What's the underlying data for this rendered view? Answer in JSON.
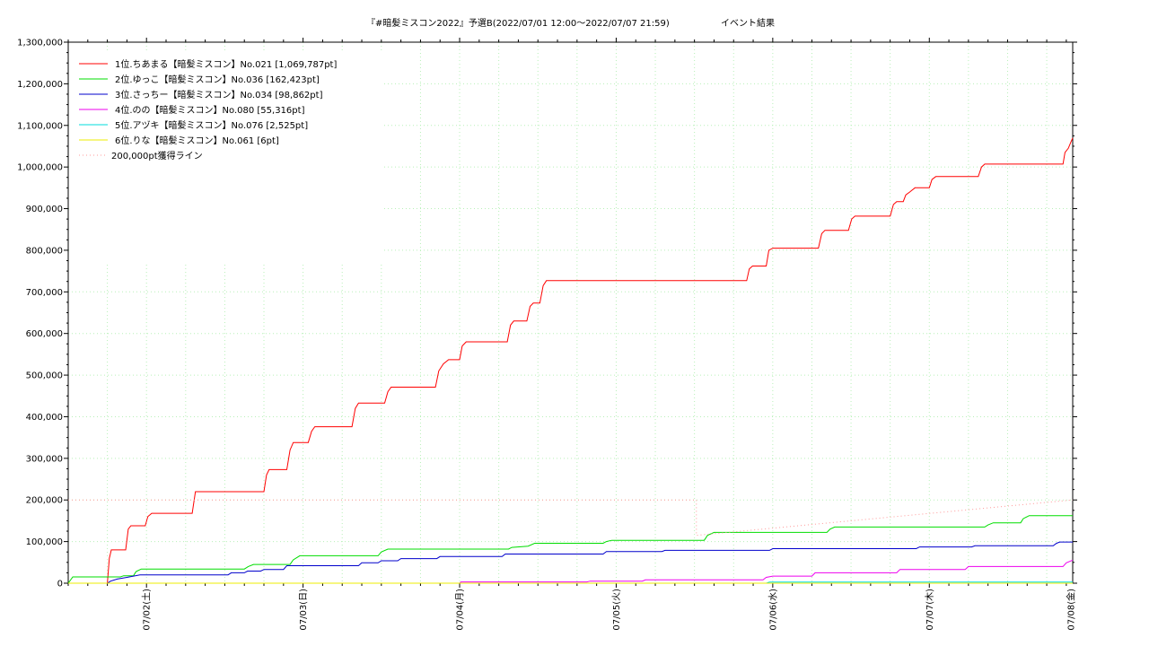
{
  "chart_data": {
    "type": "line",
    "title": "『#暗髪ミスコン2022』予選B(2022/07/01 12:00～2022/07/07 21:59)",
    "subtitle": "イベント結果",
    "ylim": [
      0,
      1300000
    ],
    "yticks": [
      "0",
      "100,000",
      "200,000",
      "300,000",
      "400,000",
      "500,000",
      "600,000",
      "700,000",
      "800,000",
      "900,000",
      "1,000,000",
      "1,100,000",
      "1,200,000",
      "1,300,000"
    ],
    "xlim": [
      0,
      153.98
    ],
    "xticks": [
      {
        "x": 12,
        "label": "07/02(土)"
      },
      {
        "x": 36,
        "label": "07/03(日)"
      },
      {
        "x": 60,
        "label": "07/04(月)"
      },
      {
        "x": 84,
        "label": "07/05(火)"
      },
      {
        "x": 108,
        "label": "07/06(水)"
      },
      {
        "x": 132,
        "label": "07/07(木)"
      },
      {
        "x": 156,
        "label": "07/08(金)"
      }
    ],
    "grid": true,
    "legend_position": "top-left",
    "series": [
      {
        "name": "1位.ちあまる【暗髪ミスコン】No.021 [1,069,787pt]",
        "color": "#ff0000",
        "points": [
          [
            0,
            0
          ],
          [
            6,
            0
          ],
          [
            6.3,
            60000
          ],
          [
            6.6,
            80000
          ],
          [
            8.8,
            80000
          ],
          [
            9.2,
            130000
          ],
          [
            9.6,
            138000
          ],
          [
            11.8,
            138000
          ],
          [
            12.2,
            160000
          ],
          [
            12.8,
            168000
          ],
          [
            19,
            168000
          ],
          [
            19.5,
            220000
          ],
          [
            30,
            220000
          ],
          [
            30.4,
            260000
          ],
          [
            30.8,
            273000
          ],
          [
            33.5,
            273000
          ],
          [
            34,
            320000
          ],
          [
            34.5,
            338000
          ],
          [
            36.8,
            338000
          ],
          [
            37.3,
            365000
          ],
          [
            37.8,
            376000
          ],
          [
            43.5,
            376000
          ],
          [
            44,
            420000
          ],
          [
            44.5,
            433000
          ],
          [
            48.5,
            433000
          ],
          [
            49,
            460000
          ],
          [
            49.5,
            471000
          ],
          [
            56.3,
            471000
          ],
          [
            56.8,
            510000
          ],
          [
            57.5,
            527000
          ],
          [
            58.3,
            537000
          ],
          [
            60,
            537000
          ],
          [
            60.4,
            570000
          ],
          [
            61,
            580000
          ],
          [
            67.3,
            580000
          ],
          [
            67.8,
            620000
          ],
          [
            68.3,
            630000
          ],
          [
            70.3,
            630000
          ],
          [
            70.8,
            665000
          ],
          [
            71.3,
            673000
          ],
          [
            72.3,
            673000
          ],
          [
            72.8,
            715000
          ],
          [
            73.3,
            727000
          ],
          [
            104,
            727000
          ],
          [
            104.4,
            755000
          ],
          [
            104.9,
            762000
          ],
          [
            107,
            762000
          ],
          [
            107.4,
            800000
          ],
          [
            108,
            805000
          ],
          [
            115,
            805000
          ],
          [
            115.5,
            840000
          ],
          [
            116,
            848000
          ],
          [
            119.6,
            848000
          ],
          [
            120.1,
            875000
          ],
          [
            120.6,
            882000
          ],
          [
            126,
            882000
          ],
          [
            126.5,
            910000
          ],
          [
            127,
            917000
          ],
          [
            128,
            917000
          ],
          [
            128.4,
            933000
          ],
          [
            129,
            940000
          ],
          [
            129.8,
            950000
          ],
          [
            132,
            950000
          ],
          [
            132.4,
            970000
          ],
          [
            133,
            977000
          ],
          [
            139.5,
            977000
          ],
          [
            140,
            1000000
          ],
          [
            140.5,
            1007000
          ],
          [
            152.5,
            1007000
          ],
          [
            152.8,
            1035000
          ],
          [
            153.3,
            1045000
          ],
          [
            153.7,
            1060000
          ],
          [
            154.2,
            1069787
          ],
          [
            156.4,
            1069787
          ]
        ]
      },
      {
        "name": "2位.ゆっこ【暗髪ミスコン】No.036 [162,423pt]",
        "color": "#00dd00",
        "points": [
          [
            0,
            0
          ],
          [
            0.7,
            15000
          ],
          [
            8,
            15000
          ],
          [
            8.5,
            18000
          ],
          [
            10,
            18000
          ],
          [
            10.4,
            28000
          ],
          [
            11.2,
            34000
          ],
          [
            27,
            34000
          ],
          [
            27.6,
            40000
          ],
          [
            28.4,
            45000
          ],
          [
            34,
            45000
          ],
          [
            34.5,
            56000
          ],
          [
            35.5,
            66000
          ],
          [
            47.5,
            66000
          ],
          [
            48,
            75000
          ],
          [
            49,
            82000
          ],
          [
            67.5,
            82000
          ],
          [
            68,
            86000
          ],
          [
            70.5,
            89000
          ],
          [
            71.5,
            96000
          ],
          [
            82,
            96000
          ],
          [
            82.5,
            100000
          ],
          [
            83.3,
            103000
          ],
          [
            97.5,
            103000
          ],
          [
            98,
            115000
          ],
          [
            99,
            122000
          ],
          [
            116.3,
            122000
          ],
          [
            116.8,
            130000
          ],
          [
            117.5,
            135000
          ],
          [
            140.5,
            135000
          ],
          [
            141,
            140000
          ],
          [
            141.8,
            145000
          ],
          [
            146,
            145000
          ],
          [
            146.4,
            155000
          ],
          [
            147.3,
            162423
          ],
          [
            156.4,
            162423
          ]
        ]
      },
      {
        "name": "3位.さっちー【暗髪ミスコン】No.034 [98,862pt]",
        "color": "#0000cc",
        "points": [
          [
            0,
            0
          ],
          [
            6,
            0
          ],
          [
            6.5,
            5000
          ],
          [
            7.5,
            10000
          ],
          [
            9,
            14000
          ],
          [
            10,
            17000
          ],
          [
            11,
            20000
          ],
          [
            24.5,
            20000
          ],
          [
            25,
            25000
          ],
          [
            27,
            25000
          ],
          [
            27.5,
            29000
          ],
          [
            29.5,
            29000
          ],
          [
            30,
            33000
          ],
          [
            33,
            33000
          ],
          [
            33.5,
            42000
          ],
          [
            44.5,
            42000
          ],
          [
            45,
            49000
          ],
          [
            47.5,
            49000
          ],
          [
            48,
            54000
          ],
          [
            50.5,
            54000
          ],
          [
            51,
            59000
          ],
          [
            56.5,
            59000
          ],
          [
            57,
            64000
          ],
          [
            66.5,
            64000
          ],
          [
            67,
            70000
          ],
          [
            82,
            70000
          ],
          [
            82.5,
            76000
          ],
          [
            91,
            76000
          ],
          [
            91.5,
            79000
          ],
          [
            107.5,
            79000
          ],
          [
            108,
            83000
          ],
          [
            130,
            83000
          ],
          [
            130.5,
            87000
          ],
          [
            138.5,
            87000
          ],
          [
            139,
            90000
          ],
          [
            151,
            90000
          ],
          [
            151.5,
            96000
          ],
          [
            152,
            98862
          ],
          [
            156.4,
            98862
          ]
        ]
      },
      {
        "name": "4位.のの【暗髪ミスコン】No.080 [55,316pt]",
        "color": "#ee00ee",
        "points": [
          [
            0,
            0
          ],
          [
            60,
            0
          ],
          [
            60.2,
            3000
          ],
          [
            79.5,
            3000
          ],
          [
            80,
            5000
          ],
          [
            88,
            5000
          ],
          [
            88.5,
            8000
          ],
          [
            106.5,
            8000
          ],
          [
            107,
            14000
          ],
          [
            108,
            17000
          ],
          [
            114,
            17000
          ],
          [
            114.5,
            25000
          ],
          [
            127,
            25000
          ],
          [
            127.5,
            33000
          ],
          [
            137.5,
            33000
          ],
          [
            138,
            40000
          ],
          [
            152.5,
            40000
          ],
          [
            153,
            49000
          ],
          [
            154,
            55316
          ],
          [
            156.4,
            55316
          ]
        ]
      },
      {
        "name": "5位.アヅキ【暗髪ミスコン】No.076 [2,525pt]",
        "color": "#00dddd",
        "points": [
          [
            0,
            0
          ],
          [
            107,
            0
          ],
          [
            107.5,
            2525
          ],
          [
            156.4,
            2525
          ]
        ]
      },
      {
        "name": "6位.りな【暗髪ミスコン】No.061 [6pt]",
        "color": "#eeee00",
        "points": [
          [
            0,
            0
          ],
          [
            156.4,
            6
          ]
        ]
      },
      {
        "name": "200,000pt獲得ライン",
        "color": "#ff9999",
        "dashed": true,
        "points": [
          [
            0,
            200000
          ],
          [
            96.3,
            200000
          ],
          [
            96.3,
            115000
          ],
          [
            156.4,
            200000
          ]
        ]
      }
    ]
  }
}
